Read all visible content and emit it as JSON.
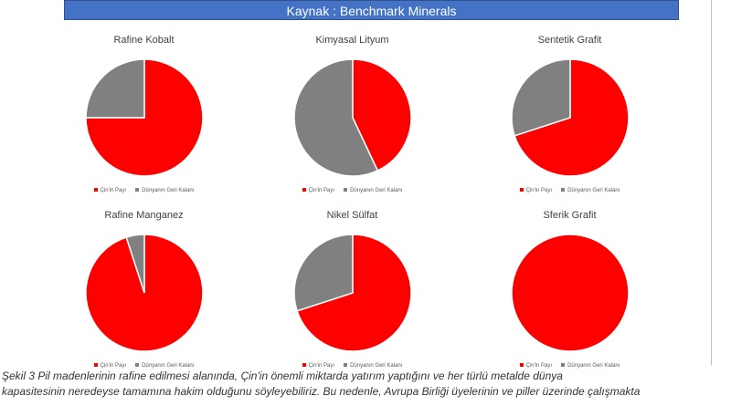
{
  "header": {
    "source_label": "Kaynak : Benchmark Minerals"
  },
  "colors": {
    "china": "#ff0000",
    "rest": "#808080"
  },
  "legend_labels": [
    "Çin'in Payı",
    "Dünyanın Geri Kalanı"
  ],
  "chart_data": [
    {
      "type": "pie",
      "title": "Rafine Kobalt",
      "labels": [
        "Çin'in Payı",
        "Dünyanın Geri Kalanı"
      ],
      "values": [
        75,
        25
      ]
    },
    {
      "type": "pie",
      "title": "Kimyasal Lityum",
      "labels": [
        "Çin'in Payı",
        "Dünyanın Geri Kalanı"
      ],
      "values": [
        43,
        57
      ]
    },
    {
      "type": "pie",
      "title": "Sentetik Grafit",
      "labels": [
        "Çin'in Payı",
        "Dünyanın Geri Kalanı"
      ],
      "values": [
        70,
        30
      ]
    },
    {
      "type": "pie",
      "title": "Rafine Manganez",
      "labels": [
        "Çin'in Payı",
        "Dünyanın Geri Kalanı"
      ],
      "values": [
        95,
        5
      ]
    },
    {
      "type": "pie",
      "title": "Nikel Sülfat",
      "labels": [
        "Çin'in Payı",
        "Dünyanın Geri Kalanı"
      ],
      "values": [
        70,
        30
      ]
    },
    {
      "type": "pie",
      "title": "Sferik Grafit",
      "labels": [
        "Çin'in Payı",
        "Dünyanın Geri Kalanı"
      ],
      "values": [
        100,
        0
      ]
    }
  ],
  "caption": {
    "line1": "Şekil 3 Pil madenlerinin rafine edilmesi alanında, Çin'in önemli miktarda yatırım yaptığını ve her türlü metalde dünya",
    "line2": "kapasitesinin neredeyse tamamına hakim olduğunu söyleyebiliriz. Bu nedenle, Avrupa Birliği üyelerinin ve piller üzerinde çalışmakta"
  }
}
